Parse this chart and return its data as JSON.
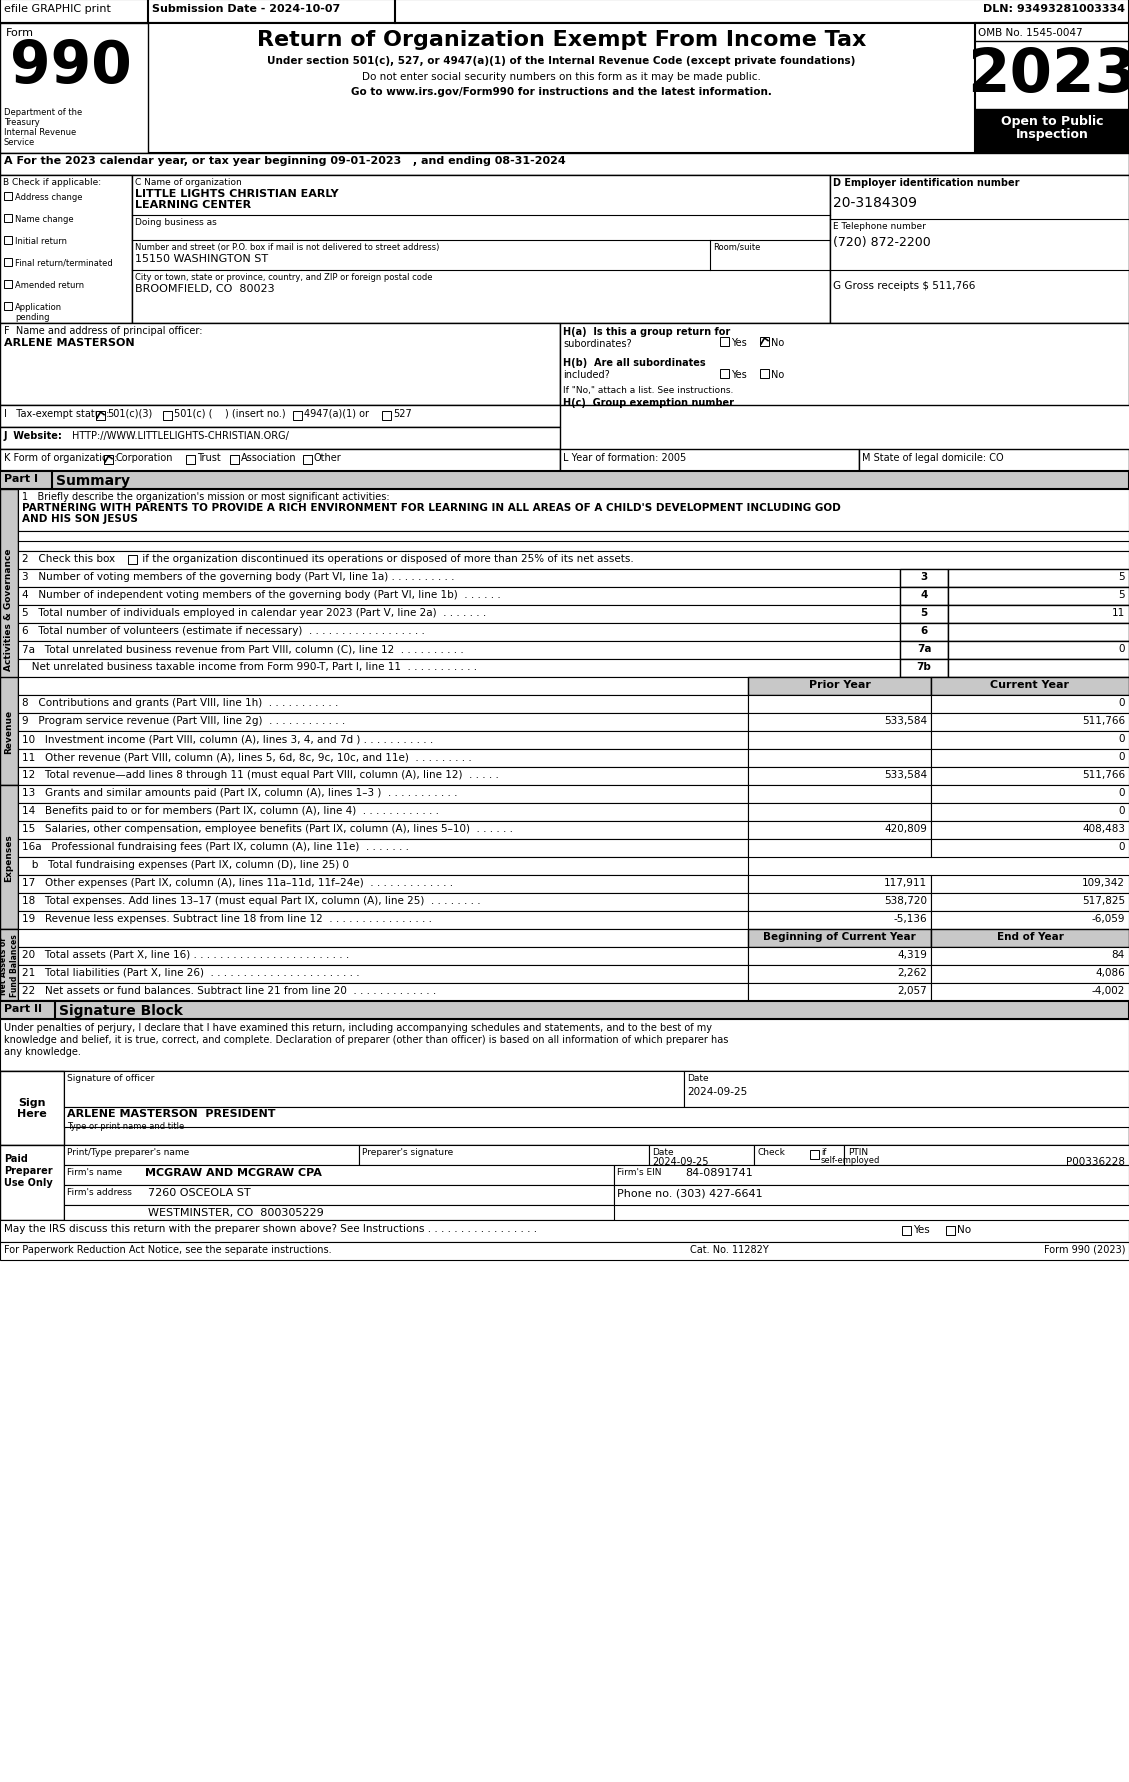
{
  "top_bar": {
    "efile": "efile GRAPHIC print",
    "submission": "Submission Date - 2024-10-07",
    "dln": "DLN: 93493281003334"
  },
  "form_header": {
    "title": "Return of Organization Exempt From Income Tax",
    "subtitle1": "Under section 501(c), 527, or 4947(a)(1) of the Internal Revenue Code (except private foundations)",
    "subtitle2": "Do not enter social security numbers on this form as it may be made public.",
    "subtitle3": "Go to www.irs.gov/Form990 for instructions and the latest information.",
    "omb": "OMB No. 1545-0047",
    "year": "2023"
  },
  "section_a": "A For the 2023 calendar year, or tax year beginning 09-01-2023   , and ending 08-31-2024",
  "section_b_items": [
    "Address change",
    "Name change",
    "Initial return",
    "Final return/terminated",
    "Amended return",
    "Application\npending"
  ],
  "org_name1": "LITTLE LIGHTS CHRISTIAN EARLY",
  "org_name2": "LEARNING CENTER",
  "ein": "20-3184309",
  "phone": "(720) 872-2200",
  "gross_receipts": "511,766",
  "street": "15150 WASHINGTON ST",
  "city": "BROOMFIELD, CO  80023",
  "principal_officer": "ARLENE MASTERSON",
  "website": "HTTP://WWW.LITTLELIGHTS-CHRISTIAN.ORG/",
  "year_formation": "2005",
  "state_domicile": "CO",
  "mission": "PARTNERING WITH PARENTS TO PROVIDE A RICH ENVIRONMENT FOR LEARNING IN ALL AREAS OF A CHILD'S DEVELOPMENT INCLUDING GOD",
  "mission2": "AND HIS SON JESUS",
  "perjury_text1": "Under penalties of perjury, I declare that I have examined this return, including accompanying schedules and statements, and to the best of my",
  "perjury_text2": "knowledge and belief, it is true, correct, and complete. Declaration of preparer (other than officer) is based on all information of which preparer has",
  "perjury_text3": "any knowledge.",
  "sig_date": "2024-09-25",
  "sig_name": "ARLENE MASTERSON  PRESIDENT",
  "prep_date": "2024-09-25",
  "ptin": "P00336228",
  "firm_name": "MCGRAW AND MCGRAW CPA",
  "firm_ein": "84-0891741",
  "firm_addr": "7260 OSCEOLA ST",
  "firm_city": "WESTMINSTER, CO  800305229",
  "firm_phone": "(303) 427-6641",
  "rev_lines": [
    [
      "8   Contributions and grants (Part VIII, line 1h)  . . . . . . . . . . .",
      "",
      "0"
    ],
    [
      "9   Program service revenue (Part VIII, line 2g)  . . . . . . . . . . . .",
      "533,584",
      "511,766"
    ],
    [
      "10   Investment income (Part VIII, column (A), lines 3, 4, and 7d ) . . . . . . . . . . .",
      "",
      "0"
    ],
    [
      "11   Other revenue (Part VIII, column (A), lines 5, 6d, 8c, 9c, 10c, and 11e)  . . . . . . . . .",
      "",
      "0"
    ],
    [
      "12   Total revenue—add lines 8 through 11 (must equal Part VIII, column (A), line 12)  . . . . .",
      "533,584",
      "511,766"
    ]
  ],
  "exp_lines": [
    [
      "13   Grants and similar amounts paid (Part IX, column (A), lines 1–3 )  . . . . . . . . . . .",
      "",
      "0"
    ],
    [
      "14   Benefits paid to or for members (Part IX, column (A), line 4)  . . . . . . . . . . . .",
      "",
      "0"
    ],
    [
      "15   Salaries, other compensation, employee benefits (Part IX, column (A), lines 5–10)  . . . . . .",
      "420,809",
      "408,483"
    ],
    [
      "16a   Professional fundraising fees (Part IX, column (A), line 11e)  . . . . . . .",
      "",
      "0"
    ],
    [
      "   b   Total fundraising expenses (Part IX, column (D), line 25) 0",
      null,
      null
    ],
    [
      "17   Other expenses (Part IX, column (A), lines 11a–11d, 11f–24e)  . . . . . . . . . . . . .",
      "117,911",
      "109,342"
    ],
    [
      "18   Total expenses. Add lines 13–17 (must equal Part IX, column (A), line 25)  . . . . . . . .",
      "538,720",
      "517,825"
    ],
    [
      "19   Revenue less expenses. Subtract line 18 from line 12  . . . . . . . . . . . . . . . .",
      "-5,136",
      "-6,059"
    ]
  ],
  "na_lines": [
    [
      "20   Total assets (Part X, line 16) . . . . . . . . . . . . . . . . . . . . . . . .",
      "4,319",
      "84"
    ],
    [
      "21   Total liabilities (Part X, line 26)  . . . . . . . . . . . . . . . . . . . . . . .",
      "2,262",
      "4,086"
    ],
    [
      "22   Net assets or fund balances. Subtract line 21 from line 20  . . . . . . . . . . . . .",
      "2,057",
      "-4,002"
    ]
  ]
}
